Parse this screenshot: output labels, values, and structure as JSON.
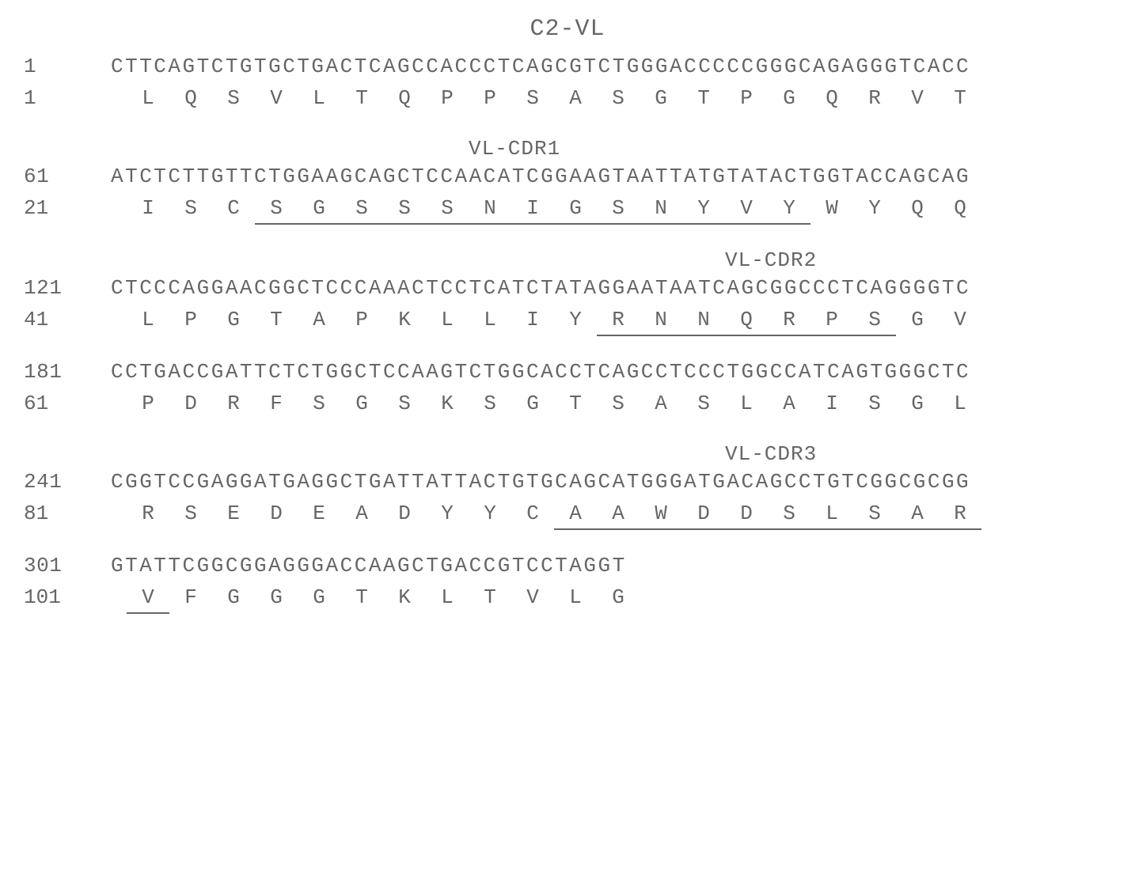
{
  "title": "C2-VL",
  "font_color": "#666666",
  "background_color": "#ffffff",
  "font_family": "Courier New",
  "title_fontsize": 30,
  "body_fontsize": 26,
  "amino_cell_width": 54,
  "underline_weight": 2.5,
  "blocks": [
    {
      "nuc_number": "1",
      "nucleotide": "CTTCAGTCTGTGCTGACTCAGCCACCCTCAGCGTCTGGGACCCCCGGGCAGAGGGTCACC",
      "aa_number": "1",
      "amino_acids": [
        "L",
        "Q",
        "S",
        "V",
        "L",
        "T",
        "Q",
        "P",
        "P",
        "S",
        "A",
        "S",
        "G",
        "T",
        "P",
        "G",
        "Q",
        "R",
        "V",
        "T"
      ],
      "underline_start": null,
      "underline_end": null
    },
    {
      "region_label": "VL-CDR1",
      "region_offset_cells": 8,
      "nuc_number": "61",
      "nucleotide": "ATCTCTTGTTCTGGAAGCAGCTCCAACATCGGAAGTAATTATGTATACTGGTACCAGCAG",
      "aa_number": "21",
      "amino_acids": [
        "I",
        "S",
        "C",
        "S",
        "G",
        "S",
        "S",
        "S",
        "N",
        "I",
        "G",
        "S",
        "N",
        "Y",
        "V",
        "Y",
        "W",
        "Y",
        "Q",
        "Q"
      ],
      "underline_start": 3,
      "underline_end": 15
    },
    {
      "region_label": "VL-CDR2",
      "region_offset_cells": 14,
      "nuc_number": "121",
      "nucleotide": "CTCCCAGGAACGGCTCCCAAACTCCTCATCTATAGGAATAATCAGCGGCCCTCAGGGGTC",
      "aa_number": "41",
      "amino_acids": [
        "L",
        "P",
        "G",
        "T",
        "A",
        "P",
        "K",
        "L",
        "L",
        "I",
        "Y",
        "R",
        "N",
        "N",
        "Q",
        "R",
        "P",
        "S",
        "G",
        "V"
      ],
      "underline_start": 11,
      "underline_end": 17
    },
    {
      "nuc_number": "181",
      "nucleotide": "CCTGACCGATTCTCTGGCTCCAAGTCTGGCACCTCAGCCTCCCTGGCCATCAGTGGGCTC",
      "aa_number": "61",
      "amino_acids": [
        "P",
        "D",
        "R",
        "F",
        "S",
        "G",
        "S",
        "K",
        "S",
        "G",
        "T",
        "S",
        "A",
        "S",
        "L",
        "A",
        "I",
        "S",
        "G",
        "L"
      ],
      "underline_start": null,
      "underline_end": null
    },
    {
      "region_label": "VL-CDR3",
      "region_offset_cells": 14,
      "nuc_number": "241",
      "nucleotide": "CGGTCCGAGGATGAGGCTGATTATTACTGTGCAGCATGGGATGACAGCCTGTCGGCGCGG",
      "aa_number": "81",
      "amino_acids": [
        "R",
        "S",
        "E",
        "D",
        "E",
        "A",
        "D",
        "Y",
        "Y",
        "C",
        "A",
        "A",
        "W",
        "D",
        "D",
        "S",
        "L",
        "S",
        "A",
        "R"
      ],
      "underline_start": 10,
      "underline_end": 19
    },
    {
      "nuc_number": "301",
      "nucleotide": "GTATTCGGCGGAGGGACCAAGCTGACCGTCCTAGGT",
      "aa_number": "101",
      "amino_acids": [
        "V",
        "F",
        "G",
        "G",
        "G",
        "T",
        "K",
        "L",
        "T",
        "V",
        "L",
        "G"
      ],
      "underline_start": 0,
      "underline_end": 0
    }
  ]
}
